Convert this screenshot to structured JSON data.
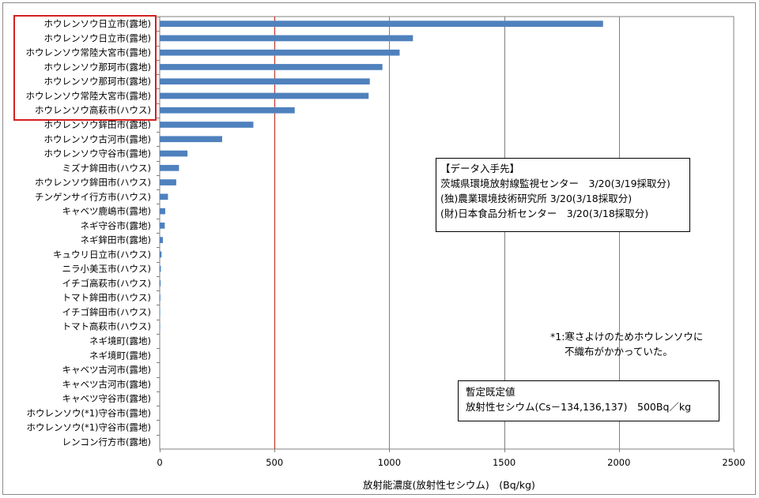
{
  "chart_data": {
    "type": "bar",
    "orientation": "horizontal",
    "xlabel": "放射能濃度(放射性セシウム)　(Bq/kg)",
    "xlim": [
      0,
      2500
    ],
    "xticks": [
      0,
      500,
      1000,
      1500,
      2000,
      2500
    ],
    "grid": true,
    "reference_line": {
      "value": 500,
      "color": "#c0392b"
    },
    "bar_color": "#4f81bd",
    "categories": [
      "ホウレンソウ日立市(露地)",
      "ホウレンソウ日立市(露地)",
      "ホウレンソウ常陸大宮市(露地)",
      "ホウレンソウ那珂市(露地)",
      "ホウレンソウ那珂市(露地)",
      "ホウレンソウ常陸大宮市(露地)",
      "ホウレンソウ高萩市(ハウス)",
      "ホウレンソウ鉾田市(露地)",
      "ホウレンソウ古河市(露地)",
      "ホウレンソウ守谷市(露地)",
      "ミズナ鉾田市(ハウス)",
      "ホウレンソウ鉾田市(ハウス)",
      "チンゲンサイ行方市(ハウス)",
      "キャベツ鹿嶋市(露地)",
      "ネギ守谷市(露地)",
      "ネギ鉾田市(露地)",
      "キュウリ日立市(ハウス)",
      "ニラ小美玉市(ハウス)",
      "イチゴ高萩市(ハウス)",
      "トマト鉾田市(ハウス)",
      "イチゴ鉾田市(ハウス)",
      "トマト高萩市(ハウス)",
      "ネギ境町(露地)",
      "ネギ境町(露地)",
      "キャベツ古河市(露地)",
      "キャベツ古河市(露地)",
      "キャベツ守谷市(露地)",
      "ホウレンソウ(*1)守谷市(露地)",
      "ホウレンソウ(*1)守谷市(露地)",
      "レンコン行方市(露地)"
    ],
    "values": [
      1931,
      1103,
      1045,
      970,
      915,
      910,
      588,
      408,
      272,
      121,
      84,
      72,
      36,
      24,
      22,
      14,
      8,
      5,
      4,
      3,
      2,
      2,
      0,
      0,
      0,
      0,
      0,
      0,
      0,
      0
    ]
  },
  "source_box": {
    "lines": [
      "【データ入手先】",
      "茨城県環境放射線監視センター　3/20(3/19採取分)",
      "(独)農業環境技術研究所 3/20(3/18採取分)",
      "(財)日本食品分析センター　3/20(3/18採取分)"
    ]
  },
  "footnote": {
    "line1": "*1:寒さよけのためホウレンソウに",
    "line2": "不織布がかかっていた。"
  },
  "limit_box": {
    "line1": "暫定既定値",
    "line2": "放射性セシウム(Cs－134,136,137)　500Bq／kg"
  }
}
